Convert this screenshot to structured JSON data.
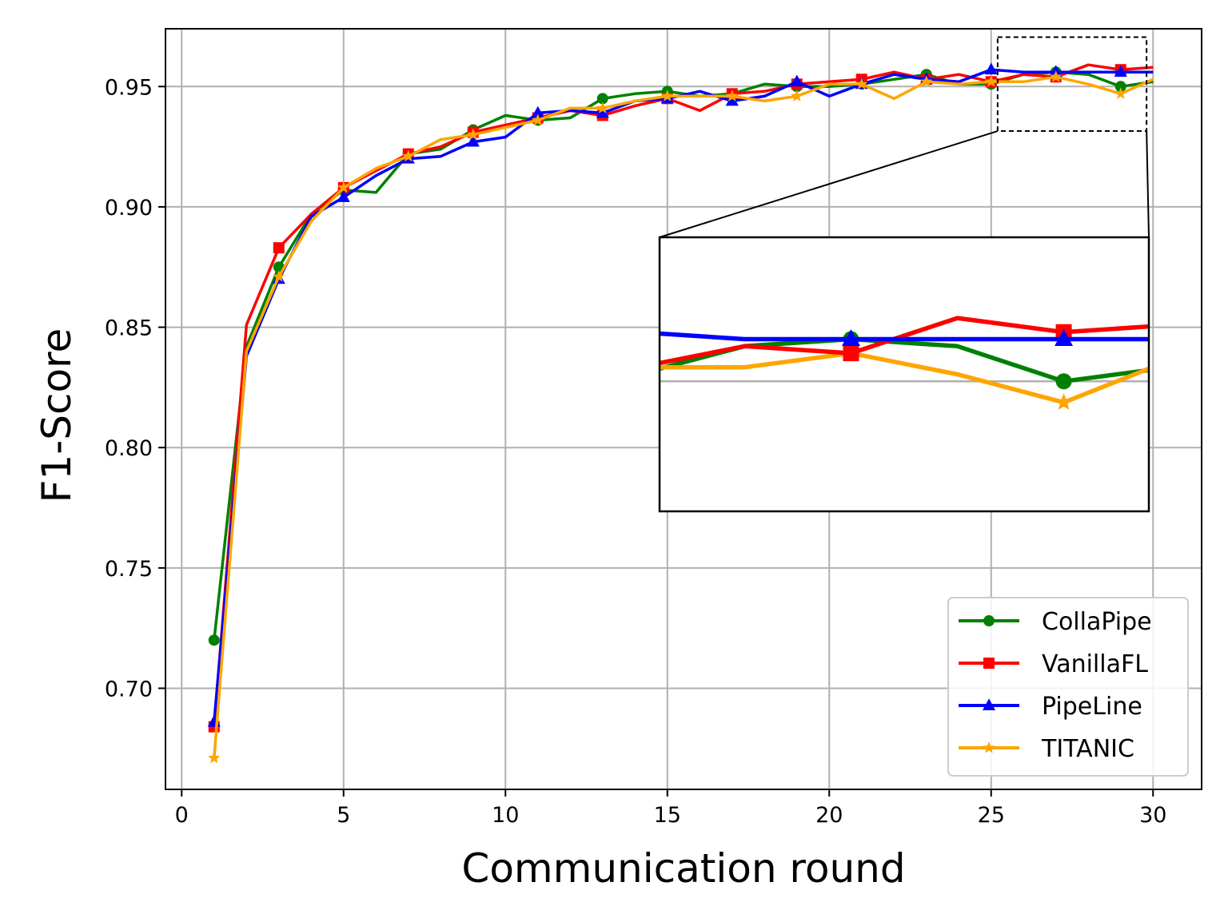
{
  "chart_data": {
    "type": "line",
    "xlabel": "Communication round",
    "ylabel": "F1-Score",
    "xlim": [
      -0.5,
      31.5
    ],
    "ylim": [
      0.658,
      0.974
    ],
    "xticks": [
      "0",
      "5",
      "10",
      "15",
      "20",
      "25",
      "30"
    ],
    "yticks": [
      "0.70",
      "0.75",
      "0.80",
      "0.85",
      "0.90",
      "0.95"
    ],
    "grid": true,
    "legend_position": "lower-right",
    "inset": {
      "xlim": [
        25.2,
        29.8
      ],
      "ylim": [
        0.9315,
        0.9705
      ]
    },
    "x": [
      1,
      2,
      3,
      4,
      5,
      6,
      7,
      8,
      9,
      10,
      11,
      12,
      13,
      14,
      15,
      16,
      17,
      18,
      19,
      20,
      21,
      22,
      23,
      24,
      25,
      26,
      27,
      28,
      29,
      30
    ],
    "series": [
      {
        "name": "CollaPipe",
        "color": "#008000",
        "marker": "circle",
        "values": [
          0.72,
          0.842,
          0.875,
          0.897,
          0.907,
          0.906,
          0.922,
          0.924,
          0.932,
          0.938,
          0.936,
          0.937,
          0.945,
          0.947,
          0.948,
          0.946,
          0.947,
          0.951,
          0.95,
          0.95,
          0.951,
          0.953,
          0.955,
          0.951,
          0.951,
          0.955,
          0.956,
          0.955,
          0.95,
          0.952
        ]
      },
      {
        "name": "VanillaFL",
        "color": "#ff0000",
        "marker": "square",
        "values": [
          0.684,
          0.851,
          0.883,
          0.897,
          0.908,
          0.915,
          0.922,
          0.925,
          0.931,
          0.934,
          0.937,
          0.94,
          0.938,
          0.942,
          0.945,
          0.94,
          0.947,
          0.948,
          0.951,
          0.952,
          0.953,
          0.956,
          0.953,
          0.955,
          0.952,
          0.955,
          0.954,
          0.959,
          0.957,
          0.958
        ]
      },
      {
        "name": "PipeLine",
        "color": "#0000ff",
        "marker": "triangle",
        "values": [
          0.686,
          0.838,
          0.87,
          0.896,
          0.904,
          0.913,
          0.92,
          0.921,
          0.927,
          0.929,
          0.939,
          0.94,
          0.939,
          0.944,
          0.945,
          0.948,
          0.944,
          0.946,
          0.952,
          0.946,
          0.951,
          0.955,
          0.953,
          0.952,
          0.957,
          0.956,
          0.956,
          0.956,
          0.956,
          0.956
        ]
      },
      {
        "name": "TITANIC",
        "color": "#ffa500",
        "marker": "star",
        "values": [
          0.671,
          0.84,
          0.871,
          0.894,
          0.908,
          0.916,
          0.921,
          0.928,
          0.93,
          0.933,
          0.936,
          0.941,
          0.941,
          0.944,
          0.946,
          0.946,
          0.946,
          0.944,
          0.946,
          0.951,
          0.951,
          0.945,
          0.952,
          0.951,
          0.952,
          0.952,
          0.954,
          0.951,
          0.947,
          0.953
        ]
      }
    ]
  }
}
